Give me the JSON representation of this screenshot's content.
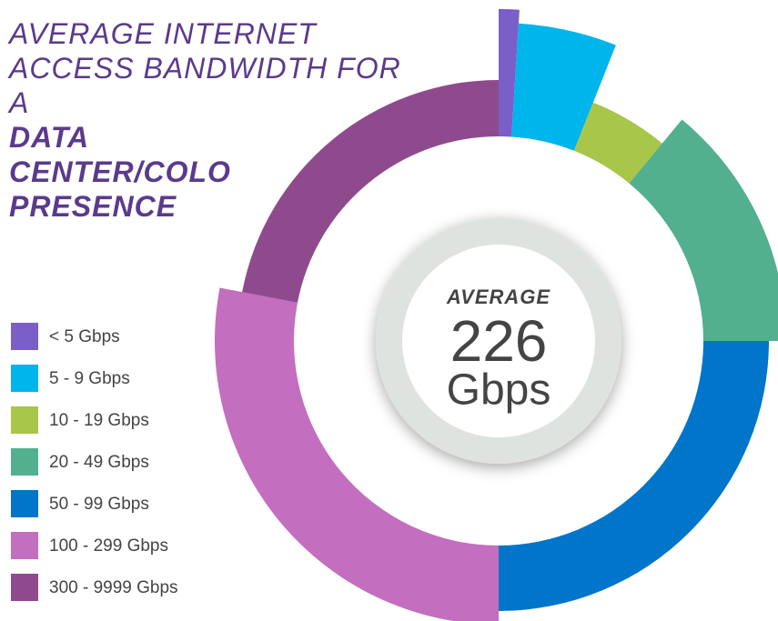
{
  "chart_data": {
    "type": "radial-pie",
    "title": "AVERAGE INTERNET ACCESS BANDWIDTH FOR A",
    "subtitle": "DATA CENTER/COLO PRESENCE",
    "categories": [
      "< 5 Gbps",
      "5 - 9 Gbps",
      "10 - 19 Gbps",
      "20 - 49 Gbps",
      "50 - 99 Gbps",
      "100 - 299 Gbps",
      "300 - 9999 Gbps"
    ],
    "values": [
      1,
      5,
      5,
      14,
      25,
      28,
      22
    ],
    "colors": [
      "#7a5fc8",
      "#00b4ec",
      "#a8c64a",
      "#52b08f",
      "#0075c9",
      "#c36ebf",
      "#8f4a8d"
    ],
    "annotation": {
      "label": "AVERAGE",
      "value": 226,
      "unit": "Gbps"
    }
  }
}
